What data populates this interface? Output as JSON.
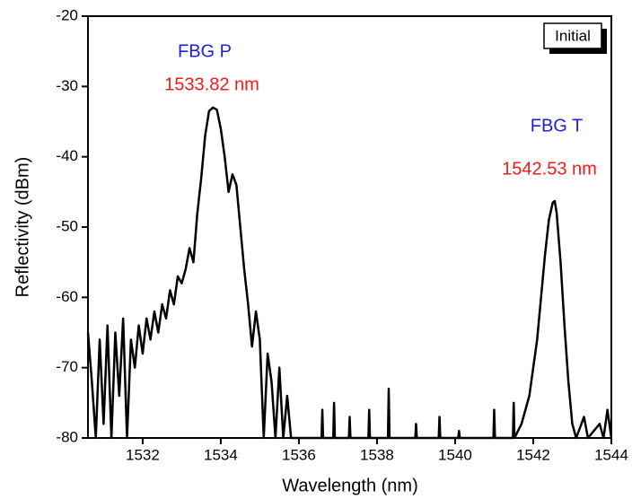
{
  "chart_data": {
    "type": "line",
    "x_label": "Wavelength (nm)",
    "y_label": "Reflectivity (dBm)",
    "xlim": [
      1530.6,
      1544
    ],
    "xticks": [
      1532,
      1534,
      1536,
      1538,
      1540,
      1542,
      1544
    ],
    "ylim": [
      -80,
      -20
    ],
    "yticks": [
      -80,
      -70,
      -60,
      -50,
      -40,
      -30,
      -20
    ],
    "legend": "top-right",
    "annotations": [
      {
        "text": "FBG P",
        "color": "#1f1fd6"
      },
      {
        "text": "1533.82 nm",
        "color": "#ee1c1c"
      },
      {
        "text": "FBG T",
        "color": "#1f1fd6"
      },
      {
        "text": "1542.53 nm",
        "color": "#ee1c1c"
      }
    ],
    "series": [
      {
        "name": "Initial",
        "color": "#000000",
        "x": [
          1530.6,
          1530.7,
          1530.8,
          1530.9,
          1531.0,
          1531.1,
          1531.2,
          1531.3,
          1531.4,
          1531.5,
          1531.6,
          1531.7,
          1531.8,
          1531.9,
          1532.0,
          1532.1,
          1532.2,
          1532.3,
          1532.4,
          1532.5,
          1532.6,
          1532.7,
          1532.8,
          1532.9,
          1533.0,
          1533.1,
          1533.2,
          1533.3,
          1533.4,
          1533.5,
          1533.6,
          1533.7,
          1533.8,
          1533.9,
          1534.0,
          1534.1,
          1534.2,
          1534.3,
          1534.4,
          1534.5,
          1534.6,
          1534.7,
          1534.8,
          1534.9,
          1535.0,
          1535.1,
          1535.2,
          1535.3,
          1535.4,
          1535.5,
          1535.6,
          1535.7,
          1535.8,
          1536.58,
          1536.6,
          1536.62,
          1536.88,
          1536.9,
          1536.92,
          1537.28,
          1537.3,
          1537.32,
          1537.78,
          1537.8,
          1537.82,
          1538.28,
          1538.3,
          1538.32,
          1538.98,
          1539.0,
          1539.02,
          1539.58,
          1539.6,
          1539.62,
          1540.08,
          1540.1,
          1540.12,
          1540.98,
          1541.0,
          1541.02,
          1541.48,
          1541.5,
          1541.52,
          1541.7,
          1541.9,
          1542.0,
          1542.1,
          1542.2,
          1542.3,
          1542.4,
          1542.5,
          1542.55,
          1542.6,
          1542.7,
          1542.8,
          1542.9,
          1543.0,
          1543.1,
          1543.3,
          1543.4,
          1543.7,
          1543.8,
          1543.9,
          1544.0
        ],
        "values": [
          -65,
          -72,
          -80,
          -66,
          -78,
          -64,
          -80,
          -65,
          -74,
          -63,
          -80,
          -66,
          -70,
          -64,
          -68,
          -63,
          -66,
          -62,
          -65,
          -61,
          -63,
          -59,
          -61,
          -57,
          -58,
          -56,
          -53,
          -55,
          -48,
          -43,
          -37,
          -33.5,
          -33,
          -33.3,
          -36,
          -40,
          -45,
          -42.5,
          -44,
          -50,
          -56,
          -61,
          -67,
          -62,
          -66,
          -80,
          -68,
          -72,
          -80,
          -70,
          -80,
          -74,
          -80,
          -80,
          -76,
          -80,
          -80,
          -75,
          -80,
          -80,
          -77,
          -80,
          -80,
          -76,
          -80,
          -80,
          -73,
          -80,
          -80,
          -78,
          -80,
          -80,
          -77,
          -80,
          -80,
          -79,
          -80,
          -80,
          -76,
          -80,
          -80,
          -75,
          -80,
          -78,
          -74,
          -70,
          -66,
          -60,
          -54,
          -49,
          -46.5,
          -46.3,
          -48,
          -55,
          -64,
          -72,
          -78,
          -80,
          -77,
          -80,
          -78,
          -80,
          -76,
          -80
        ]
      }
    ]
  }
}
